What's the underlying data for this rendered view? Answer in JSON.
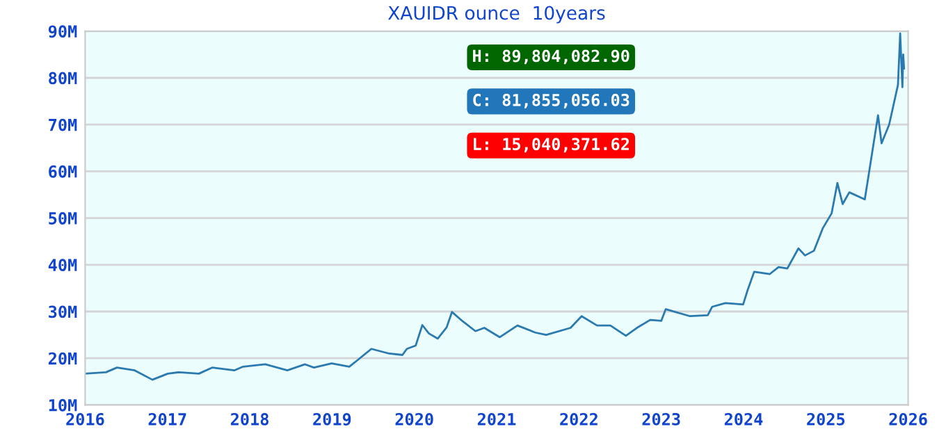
{
  "chart_data": {
    "type": "line",
    "title": "XAUIDR ounce  10years",
    "x": [
      2016.0,
      2016.253,
      2016.387,
      2016.602,
      2016.817,
      2017.005,
      2017.14,
      2017.382,
      2017.543,
      2017.812,
      2017.919,
      2018.188,
      2018.457,
      2018.672,
      2018.78,
      2018.995,
      2019.21,
      2019.317,
      2019.478,
      2019.694,
      2019.855,
      2019.909,
      2020.016,
      2020.097,
      2020.177,
      2020.285,
      2020.392,
      2020.457,
      2020.581,
      2020.742,
      2020.85,
      2021.038,
      2021.253,
      2021.468,
      2021.602,
      2021.898,
      2022.032,
      2022.22,
      2022.382,
      2022.57,
      2022.704,
      2022.866,
      2023.0,
      2023.054,
      2023.349,
      2023.565,
      2023.618,
      2023.78,
      2023.995,
      2024.048,
      2024.129,
      2024.317,
      2024.425,
      2024.532,
      2024.667,
      2024.747,
      2024.855,
      2024.962,
      2025.07,
      2025.14,
      2025.204,
      2025.285,
      2025.473,
      2025.527,
      2025.634,
      2025.677,
      2025.769,
      2025.876,
      2025.903,
      2025.93,
      2025.94,
      2025.95
    ],
    "series": [
      {
        "color": "#2a7ab0",
        "values": [
          16.7,
          17.0,
          18.0,
          17.4,
          15.4,
          16.7,
          17.0,
          16.7,
          18.0,
          17.4,
          18.2,
          18.7,
          17.4,
          18.7,
          18.0,
          18.9,
          18.2,
          19.7,
          22.0,
          21.0,
          20.7,
          22.0,
          22.7,
          27.1,
          25.3,
          24.2,
          26.6,
          29.9,
          28.0,
          25.8,
          26.5,
          24.5,
          27.0,
          25.5,
          25.0,
          26.5,
          29.0,
          27.0,
          27.0,
          24.8,
          26.5,
          28.2,
          28.0,
          30.5,
          29.0,
          29.2,
          31.0,
          31.8,
          31.5,
          34.5,
          38.5,
          38.0,
          39.5,
          39.2,
          43.5,
          42.0,
          43.0,
          47.8,
          51.0,
          57.5,
          53.0,
          55.5,
          54.0,
          60.0,
          72.0,
          66.0,
          70.0,
          78.5,
          89.5,
          78.0,
          85.0,
          82.0
        ]
      }
    ],
    "xlim": [
      2016,
      2026
    ],
    "xticks": [
      2016,
      2017,
      2018,
      2019,
      2020,
      2021,
      2022,
      2023,
      2024,
      2025,
      2026
    ],
    "ylim": [
      10,
      90
    ],
    "yticks": [
      {
        "value": 10,
        "label": "10M"
      },
      {
        "value": 20,
        "label": "20M"
      },
      {
        "value": 30,
        "label": "30M"
      },
      {
        "value": 40,
        "label": "40M"
      },
      {
        "value": 50,
        "label": "50M"
      },
      {
        "value": 60,
        "label": "60M"
      },
      {
        "value": 70,
        "label": "70M"
      },
      {
        "value": 80,
        "label": "80M"
      },
      {
        "value": 90,
        "label": "90M"
      }
    ],
    "grid": "y",
    "marker": "none",
    "line_style": "solid",
    "annotations": [
      "H: 89,804,082.90",
      "C: 81,855,056.03",
      "L: 15,040,371.62"
    ]
  }
}
